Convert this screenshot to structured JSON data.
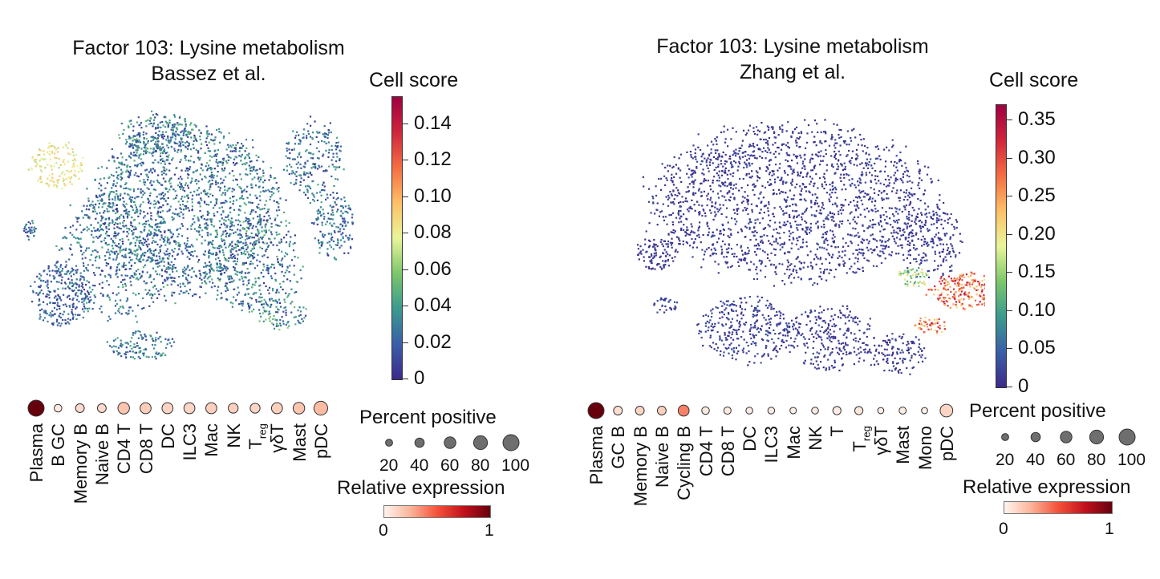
{
  "chart_data": [
    {
      "type": "scatter",
      "title": "Factor 103: Lysine metabolism",
      "subtitle": "Bassez et al.",
      "colorbar": {
        "title": "Cell score",
        "range": [
          0,
          0.155
        ],
        "ticks": [
          "0",
          "0.02",
          "0.04",
          "0.06",
          "0.08",
          "0.10",
          "0.12",
          "0.14"
        ],
        "tick_values": [
          0,
          0.02,
          0.04,
          0.06,
          0.08,
          0.1,
          0.12,
          0.14
        ],
        "colormap": [
          "#3c2a8a",
          "#3a5fa8",
          "#3b9a8f",
          "#7cc76a",
          "#e9f59a",
          "#fdc067",
          "#f46d43",
          "#d0253b",
          "#9e0142"
        ]
      },
      "dotplot": {
        "categories": [
          "Plasma",
          "B GC",
          "Memory B",
          "Naive B",
          "CD4 T",
          "CD8 T",
          "DC",
          "ILC3",
          "Mac",
          "NK",
          "Treg",
          "γδT",
          "Mast",
          "pDC"
        ],
        "relative_expression": [
          1.0,
          0.04,
          0.1,
          0.1,
          0.18,
          0.15,
          0.12,
          0.12,
          0.14,
          0.14,
          0.12,
          0.14,
          0.18,
          0.22
        ],
        "percent_positive": [
          100,
          25,
          35,
          35,
          60,
          55,
          55,
          55,
          55,
          45,
          45,
          55,
          60,
          80
        ]
      },
      "size_legend": {
        "title": "Percent positive",
        "values": [
          20,
          40,
          60,
          80,
          100
        ],
        "labels": [
          "20",
          "40",
          "60",
          "80",
          "100"
        ]
      },
      "expr_legend": {
        "title": "Relative expression",
        "min_label": "0",
        "max_label": "1"
      }
    },
    {
      "type": "scatter",
      "title": "Factor 103: Lysine metabolism",
      "subtitle": "Zhang et al.",
      "colorbar": {
        "title": "Cell score",
        "range": [
          0,
          0.37
        ],
        "ticks": [
          "0",
          "0.05",
          "0.10",
          "0.15",
          "0.20",
          "0.25",
          "0.30",
          "0.35"
        ],
        "tick_values": [
          0,
          0.05,
          0.1,
          0.15,
          0.2,
          0.25,
          0.3,
          0.35
        ],
        "colormap": [
          "#3c2a8a",
          "#3a5fa8",
          "#3b9a8f",
          "#7cc76a",
          "#e9f59a",
          "#fdc067",
          "#f46d43",
          "#d0253b",
          "#9e0142"
        ]
      },
      "dotplot": {
        "categories": [
          "Plasma",
          "GC B",
          "Memory B",
          "Naive B",
          "Cycling B",
          "CD4 T",
          "CD8 T",
          "DC",
          "ILC3",
          "Mac",
          "NK",
          "T",
          "Treg",
          "γδT",
          "Mast",
          "Mono",
          "pDC"
        ],
        "relative_expression": [
          1.0,
          0.08,
          0.12,
          0.14,
          0.38,
          0.04,
          0.04,
          0.03,
          0.03,
          0.02,
          0.03,
          0.03,
          0.05,
          0.02,
          0.03,
          0.02,
          0.12
        ],
        "percent_positive": [
          100,
          35,
          35,
          35,
          55,
          25,
          22,
          18,
          18,
          15,
          18,
          30,
          30,
          12,
          20,
          12,
          70
        ]
      },
      "size_legend": {
        "title": "Percent positive",
        "values": [
          20,
          40,
          60,
          80,
          100
        ],
        "labels": [
          "20",
          "40",
          "60",
          "80",
          "100"
        ]
      },
      "expr_legend": {
        "title": "Relative expression",
        "min_label": "0",
        "max_label": "1"
      }
    }
  ]
}
